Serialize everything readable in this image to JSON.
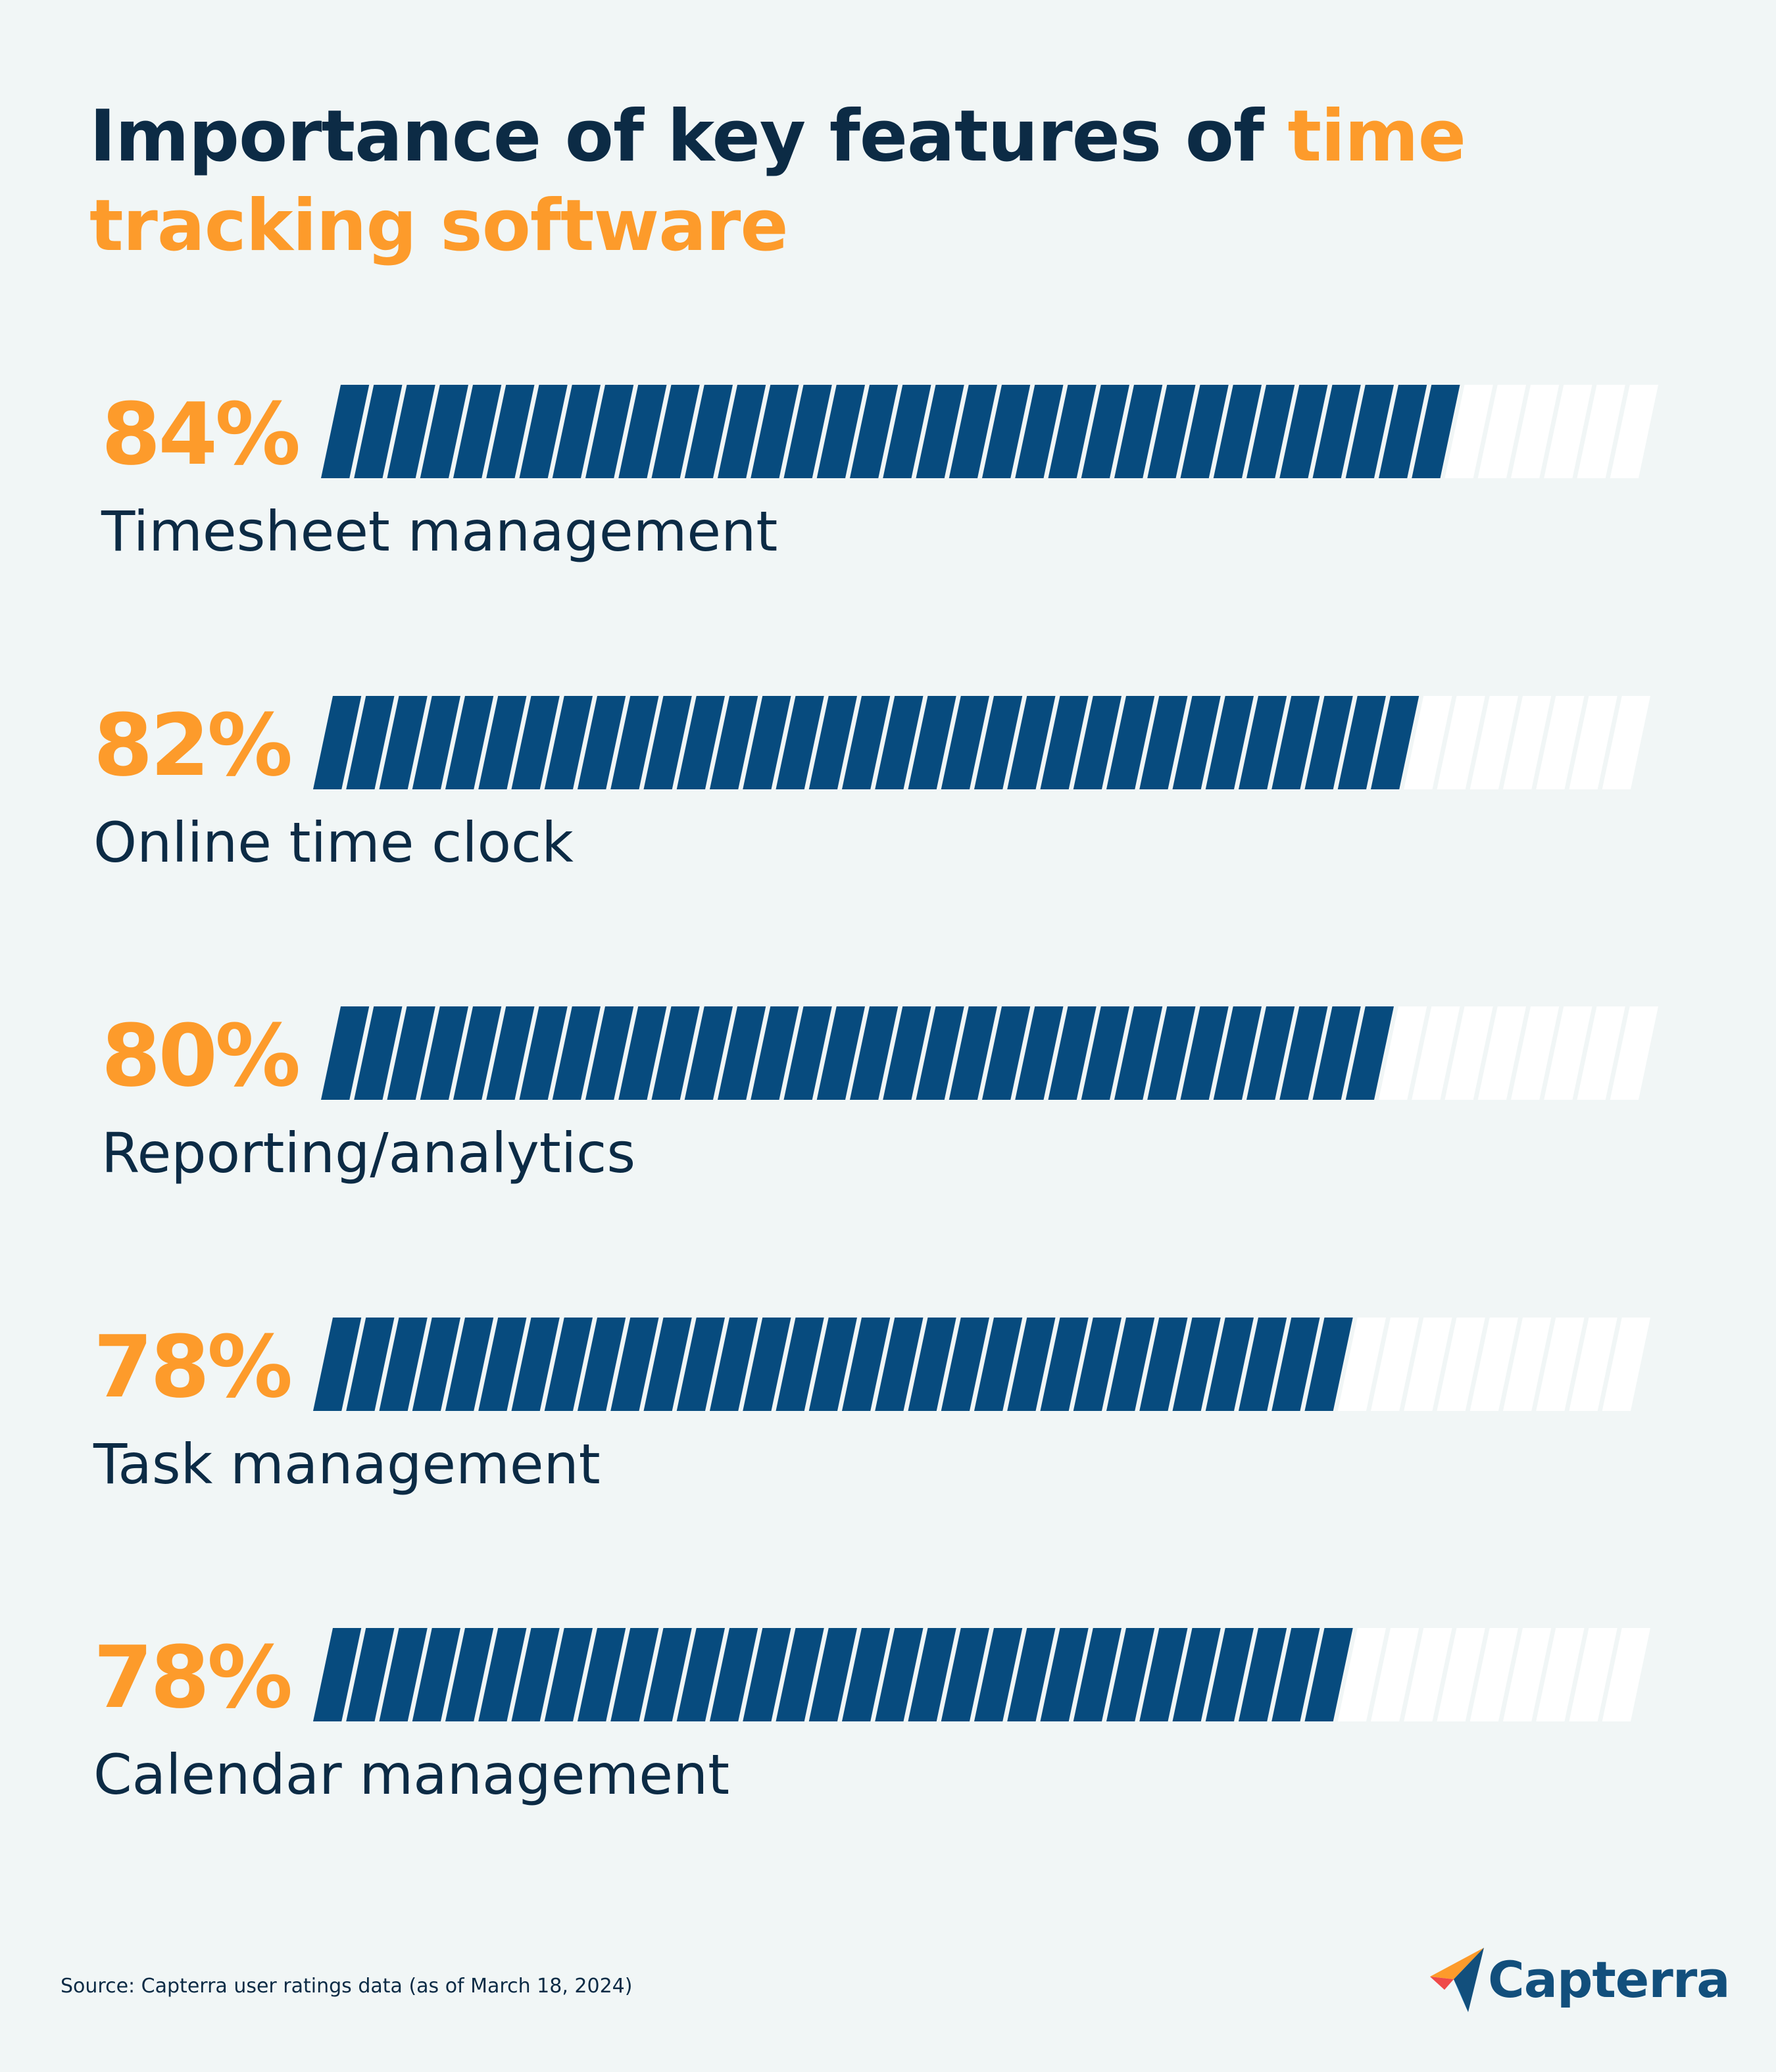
{
  "title": {
    "main": "Importance of key features of ",
    "highlight": "time tracking software"
  },
  "chart_data": {
    "type": "bar",
    "orientation": "horizontal",
    "title": "Importance of key features of time tracking software",
    "categories": [
      "Timesheet management",
      "Online time clock",
      "Reporting/analytics",
      "Task management",
      "Calendar management"
    ],
    "values": [
      84,
      82,
      80,
      78,
      78
    ],
    "value_labels": [
      "84%",
      "82%",
      "80%",
      "78%",
      "78%"
    ],
    "xlim": [
      0,
      100
    ],
    "unit": "%"
  },
  "colors": {
    "background": "#f1f6f6",
    "fill": "#074b7e",
    "empty": "#ffffff",
    "accent": "#fd9b2b",
    "text": "#0c2b45"
  },
  "source": "Source: Capterra user ratings data (as of March 18, 2024)",
  "brand": {
    "name": "Capterra",
    "icon": "capterra-arrow-icon"
  }
}
